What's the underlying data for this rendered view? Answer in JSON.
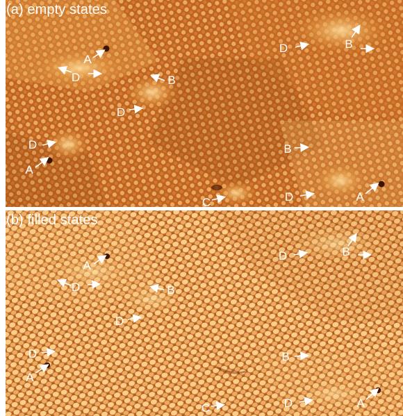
{
  "panel_a": {
    "title": "(a) empty states",
    "labels": [
      "A",
      "D",
      "B",
      "D",
      "D",
      "A",
      "C",
      "D",
      "B",
      "D",
      "B",
      "D",
      "A"
    ]
  },
  "panel_b": {
    "title": "(b) filled states",
    "labels": [
      "A",
      "D",
      "B",
      "D",
      "D",
      "A",
      "C",
      "D",
      "B",
      "D",
      "B",
      "D",
      "A"
    ]
  },
  "colors": {
    "dark": "#7c3607",
    "mid": "#b85719",
    "light": "#e09645",
    "highlight": "#ffe6a0"
  }
}
